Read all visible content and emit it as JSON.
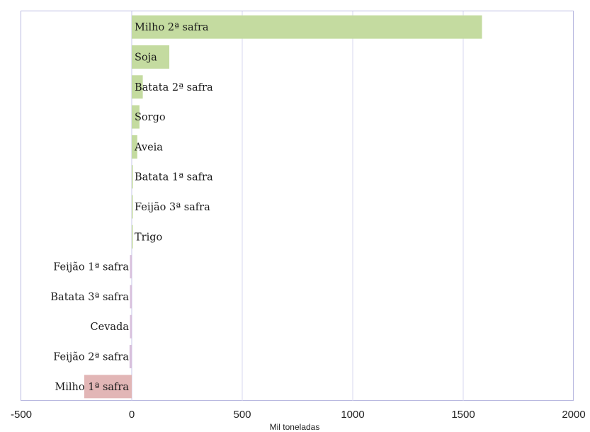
{
  "chart_data": {
    "type": "bar",
    "orientation": "horizontal",
    "xlabel": "Mil toneladas",
    "xlim": [
      -500,
      2000
    ],
    "xticks": [
      "-500",
      "0",
      "500",
      "1000",
      "1500",
      "2000"
    ],
    "xtick_values": [
      -500,
      0,
      500,
      1000,
      1500,
      2000
    ],
    "grid": "vertical",
    "colors": {
      "positive": "#c4dba0",
      "negative_small": "#d8bfdc",
      "negative_large": "#e2b6b6",
      "gridline": "#d7d7ef",
      "border": "#b9b9e0"
    },
    "categories": [
      "Milho 2ª safra",
      "Soja",
      "Batata 2ª safra",
      "Sorgo",
      "Aveia",
      "Batata 1ª safra",
      "Feijão 3ª safra",
      "Trigo",
      "Feijão 1ª safra",
      "Batata 3ª safra",
      "Cevada",
      "Feijão 2ª safra",
      "Milho 1ª safra"
    ],
    "values": [
      1585,
      170,
      50,
      35,
      25,
      5,
      3,
      3,
      -8,
      -8,
      -8,
      -10,
      -215
    ]
  }
}
